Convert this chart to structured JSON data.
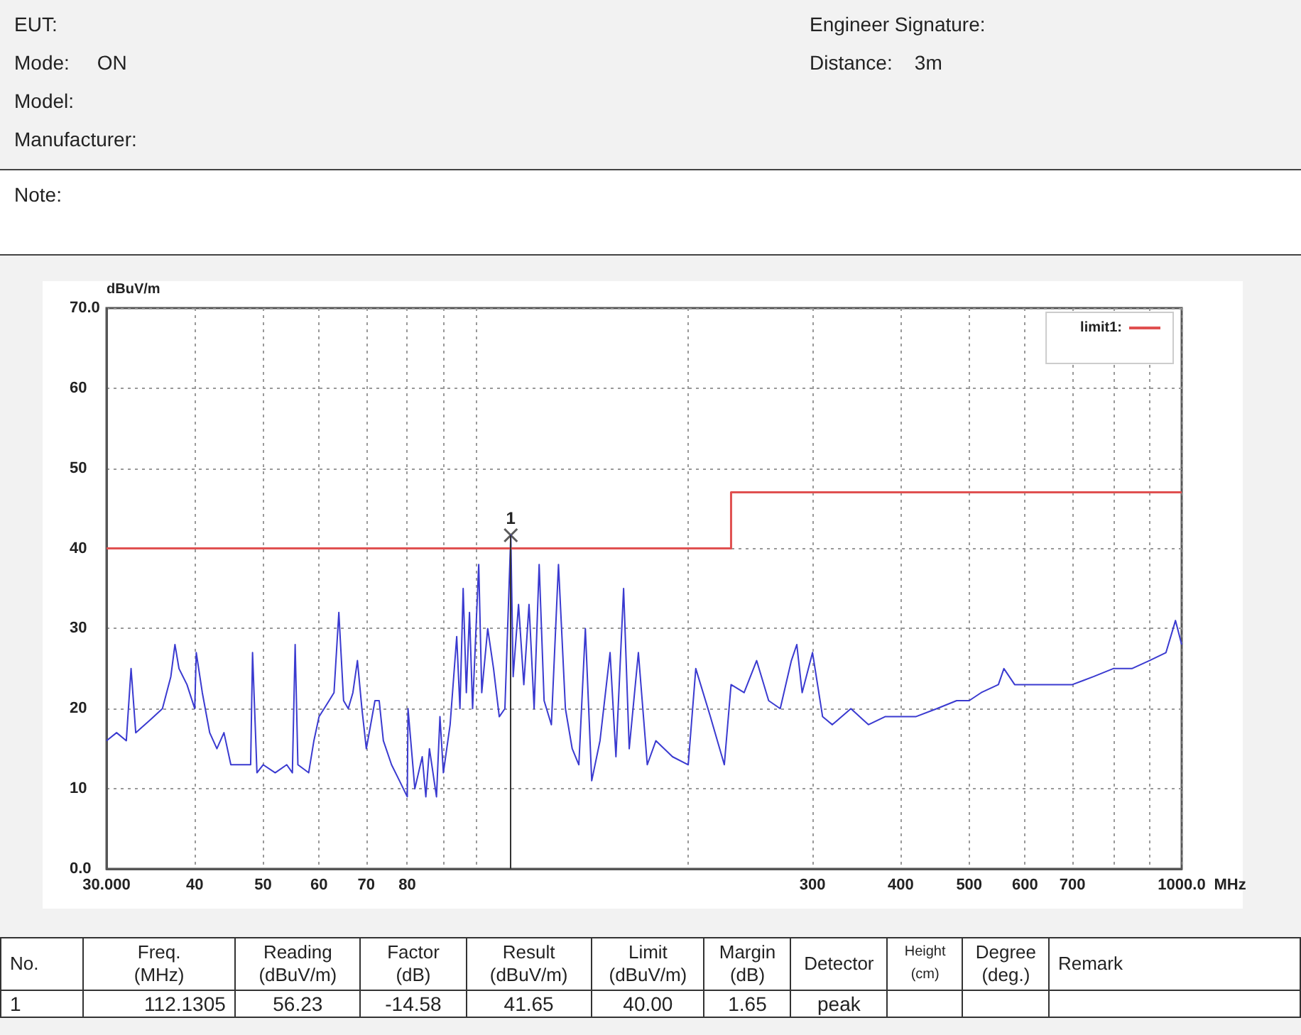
{
  "chart_data": [
    {
      "type": "other",
      "annotations": [
        "EUT:",
        "Mode:     ON",
        "Model:",
        "Manufacturer:",
        "Engineer Signature:",
        "Distance:    3m"
      ]
    },
    {
      "type": "other",
      "annotations": [
        "Note:"
      ]
    },
    {
      "type": "line",
      "ylabel": "dBuV/m",
      "xlabel": "MHz",
      "log": "x",
      "grid": true,
      "legend": "top right",
      "marker": "none",
      "line_style": "solid",
      "xlim": [
        30,
        1000
      ],
      "ylim": [
        0,
        70
      ],
      "xticks": [
        {
          "value": 30,
          "label": "30.000"
        },
        40,
        50,
        60,
        70,
        80,
        {
          "value": 90,
          "label": null
        },
        {
          "value": 100,
          "label": null
        },
        {
          "value": 200,
          "label": null
        },
        300,
        400,
        500,
        600,
        700,
        {
          "value": 800,
          "label": null
        },
        {
          "value": 900,
          "label": null
        },
        {
          "value": 1000,
          "label": "1000.0"
        }
      ],
      "yticks": [
        {
          "value": 0,
          "label": "0.0"
        },
        10,
        20,
        30,
        40,
        50,
        60,
        {
          "value": 70,
          "label": "70.0"
        }
      ],
      "series": [
        {
          "color": "#3a3ad0",
          "x": [
            30,
            31,
            32,
            32.5,
            33,
            34,
            35,
            36,
            37,
            37.5,
            38,
            39,
            40,
            40.2,
            41,
            42,
            43,
            44,
            45,
            46,
            47,
            48,
            48.3,
            49,
            50,
            52,
            54,
            55,
            55.5,
            56,
            58,
            59,
            60,
            61,
            62,
            63,
            64,
            65,
            66,
            67,
            68,
            69,
            70,
            71,
            72,
            73,
            74,
            76,
            78,
            80,
            80.2,
            82,
            84,
            85,
            86,
            88,
            89,
            90,
            92,
            94,
            95,
            96,
            97,
            98,
            99,
            101,
            102,
            104,
            106,
            108,
            110,
            112.1305,
            113,
            115,
            117,
            119,
            121,
            123,
            125,
            128,
            131,
            134,
            137,
            140,
            143,
            146,
            150,
            155,
            158,
            162,
            165,
            170,
            175,
            180,
            190,
            200,
            205,
            215,
            225,
            230,
            240,
            250,
            260,
            270,
            280,
            285,
            290,
            300,
            310,
            320,
            340,
            360,
            380,
            400,
            420,
            450,
            480,
            500,
            520,
            550,
            560,
            580,
            620,
            650,
            700,
            750,
            800,
            850,
            900,
            950,
            980,
            1000
          ],
          "values": [
            16,
            17,
            16,
            25,
            17,
            18,
            19,
            20,
            24,
            28,
            25,
            23,
            20,
            27,
            22,
            17,
            15,
            17,
            13,
            13,
            13,
            13,
            27,
            12,
            13,
            12,
            13,
            12,
            28,
            13,
            12,
            16,
            19,
            20,
            21,
            22,
            32,
            21,
            20,
            22,
            26,
            20,
            15,
            18,
            21,
            21,
            16,
            13,
            11,
            9,
            20,
            10,
            14,
            9,
            15,
            9,
            19,
            12,
            18,
            29,
            20,
            35,
            22,
            32,
            20,
            38,
            22,
            30,
            25,
            19,
            20,
            41.65,
            24,
            33,
            23,
            33,
            20,
            38,
            21,
            18,
            38,
            20,
            15,
            13,
            30,
            11,
            16,
            27,
            14,
            35,
            15,
            27,
            13,
            16,
            14,
            13,
            25,
            19,
            13,
            23,
            22,
            26,
            21,
            20,
            26,
            28,
            22,
            27,
            19,
            18,
            20,
            18,
            19,
            19,
            19,
            20,
            21,
            21,
            22,
            23,
            25,
            23,
            23,
            23,
            23,
            24,
            25,
            25,
            26,
            27,
            31,
            28
          ]
        },
        {
          "name": "limit1:",
          "type": "step",
          "color": "#e05050",
          "x": [
            30,
            230,
            1000
          ],
          "values": [
            40,
            47,
            47
          ]
        },
        {
          "type": "scatter",
          "marker": "cross",
          "color": "#333333",
          "x": [
            112.1305
          ],
          "values": [
            41.65
          ]
        }
      ],
      "ref_lines": [
        {
          "axis": "x",
          "value": 112.1305,
          "color": "#333333"
        }
      ],
      "annotations": [
        {
          "text": "1",
          "x": 112.1305,
          "y": 41.65
        }
      ]
    },
    {
      "type": "other",
      "categories": [
        "No.",
        "Freq.\n(MHz)",
        "Reading\n(dBuV/m)",
        "Factor\n(dB)",
        "Result\n(dBuV/m)",
        "Limit\n(dBuV/m)",
        "Margin\n(dB)",
        "Detector",
        "Height\n(cm)",
        "Degree\n(deg.)",
        "Remark"
      ],
      "annotations": [
        "1",
        "112.1305",
        "56.23",
        "-14.58",
        "41.65",
        "40.00",
        "1.65",
        "peak"
      ]
    }
  ]
}
